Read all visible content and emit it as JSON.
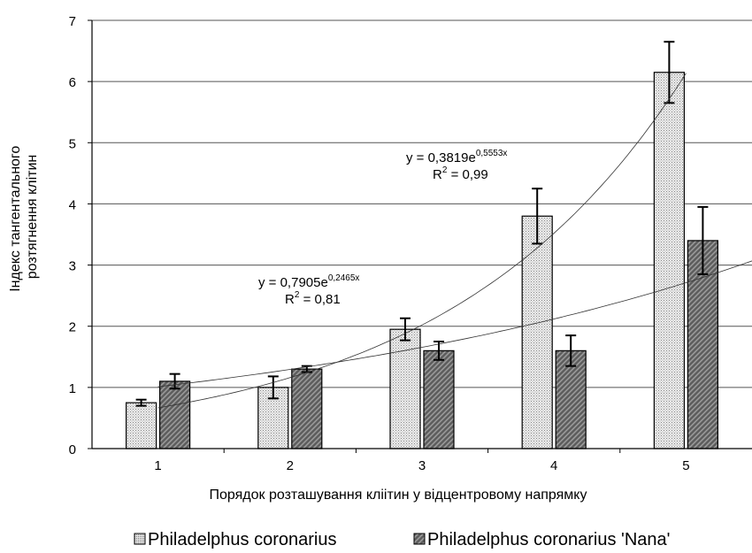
{
  "chart_data": {
    "type": "bar",
    "xlabel": "Порядок розташування кліітин у відцентровому напрямку",
    "ylabel_lines": [
      "Індекс тангентального",
      "розтягнення клітин"
    ],
    "categories": [
      "1",
      "2",
      "3",
      "4",
      "5"
    ],
    "ylim": [
      0,
      7
    ],
    "yticks": [
      "0",
      "1",
      "2",
      "3",
      "4",
      "5",
      "6",
      "7"
    ],
    "grid": true,
    "legend_position": "bottom",
    "series": [
      {
        "name": "Philadelphus coronarius",
        "values": [
          0.75,
          1.0,
          1.95,
          3.8,
          6.15
        ],
        "errors": [
          0.05,
          0.18,
          0.18,
          0.45,
          0.5
        ],
        "fill": "#e6e6e6",
        "pattern": "dots",
        "trendline": {
          "type": "exponential",
          "a": 0.3819,
          "b": 0.5553,
          "equation_prefix": "y = 0,3819e",
          "equation_exp": "0,5553x",
          "r2_prefix": "R",
          "r2_exp": "2",
          "r2_suffix": " = 0,99"
        }
      },
      {
        "name": "Philadelphus coronarius 'Nana'",
        "values": [
          1.1,
          1.3,
          1.6,
          1.6,
          3.4
        ],
        "errors": [
          0.12,
          0.05,
          0.15,
          0.25,
          0.55
        ],
        "fill": "#6a6a6a",
        "pattern": "hatch",
        "trendline": {
          "type": "exponential",
          "a": 0.7905,
          "b": 0.2465,
          "equation_prefix": "y = 0,7905e",
          "equation_exp": "0,2465x",
          "r2_prefix": "R",
          "r2_exp": "2",
          "r2_suffix": " = 0,81"
        }
      }
    ]
  }
}
